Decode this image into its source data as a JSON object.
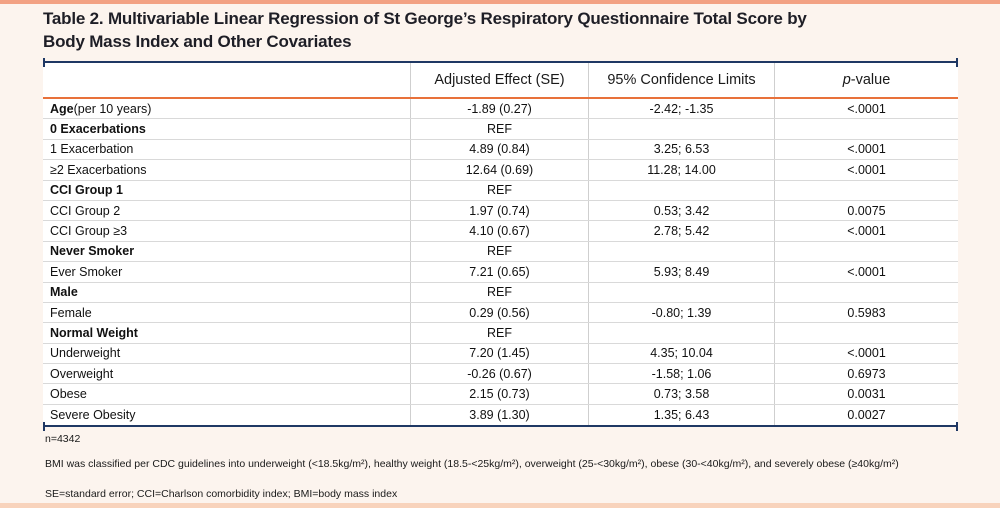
{
  "title": {
    "line1": "Table 2. Multivariable Linear Regression of St George’s Respiratory Questionnaire Total Score by",
    "line2": "Body Mass Index and Other Covariates"
  },
  "table": {
    "columns": [
      {
        "text": ""
      },
      {
        "text": "Adjusted Effect (SE)"
      },
      {
        "text": "95% Confidence Limits"
      },
      {
        "text": "p-value",
        "italic_chars": 1
      }
    ],
    "rows": [
      {
        "label": "Age",
        "note": " (per 10 years)",
        "bold": true,
        "effect": "-1.89 (0.27)",
        "ci": "-2.42; -1.35",
        "p": "<.0001"
      },
      {
        "label": "0 Exacerbations",
        "bold": true,
        "effect": "REF",
        "ci": "",
        "p": ""
      },
      {
        "label": "1 Exacerbation",
        "bold": false,
        "effect": "4.89 (0.84)",
        "ci": "3.25; 6.53",
        "p": "<.0001"
      },
      {
        "label": "≥2 Exacerbations",
        "bold": false,
        "effect": "12.64 (0.69)",
        "ci": "11.28; 14.00",
        "p": "<.0001"
      },
      {
        "label": "CCI Group 1",
        "bold": true,
        "effect": "REF",
        "ci": "",
        "p": ""
      },
      {
        "label": "CCI Group 2",
        "bold": false,
        "effect": "1.97 (0.74)",
        "ci": "0.53; 3.42",
        "p": "0.0075"
      },
      {
        "label": "CCI Group ≥3",
        "bold": false,
        "effect": "4.10 (0.67)",
        "ci": "2.78; 5.42",
        "p": "<.0001"
      },
      {
        "label": "Never Smoker",
        "bold": true,
        "effect": "REF",
        "ci": "",
        "p": ""
      },
      {
        "label": "Ever Smoker",
        "bold": false,
        "effect": "7.21 (0.65)",
        "ci": "5.93; 8.49",
        "p": "<.0001"
      },
      {
        "label": "Male",
        "bold": true,
        "effect": "REF",
        "ci": "",
        "p": ""
      },
      {
        "label": "Female",
        "bold": false,
        "effect": "0.29 (0.56)",
        "ci": "-0.80; 1.39",
        "p": "0.5983"
      },
      {
        "label": "Normal Weight",
        "bold": true,
        "effect": "REF",
        "ci": "",
        "p": ""
      },
      {
        "label": "Underweight",
        "bold": false,
        "effect": "7.20 (1.45)",
        "ci": "4.35; 10.04",
        "p": "<.0001"
      },
      {
        "label": "Overweight",
        "bold": false,
        "effect": "-0.26 (0.67)",
        "ci": "-1.58; 1.06",
        "p": "0.6973"
      },
      {
        "label": "Obese",
        "bold": false,
        "effect": "2.15 (0.73)",
        "ci": "0.73; 3.58",
        "p": "0.0031"
      },
      {
        "label": "Severe Obesity",
        "bold": false,
        "effect": "3.89 (1.30)",
        "ci": "1.35; 6.43",
        "p": "0.0027"
      }
    ]
  },
  "footnotes": {
    "n": "n=4342",
    "bmi": "BMI was classified per CDC guidelines into underweight (<18.5kg/m²), healthy weight (18.5-<25kg/m²), overweight (25-<30kg/m²), obese (30-<40kg/m²), and severely obese (≥40kg/m²)",
    "abbreviations": "SE=standard error; CCI=Charlson comorbidity index; BMI=body mass index"
  },
  "colors": {
    "navy": "#1f3864",
    "orange": "#e8713a",
    "bar-top": "#f2a183",
    "bar-bottom": "#f8d3bc",
    "page-bg": "#fcf4ee",
    "divider": "#cfcfcf",
    "row-line": "#d9d9d9",
    "text": "#1a1a1a",
    "title": "#1e1e26"
  }
}
